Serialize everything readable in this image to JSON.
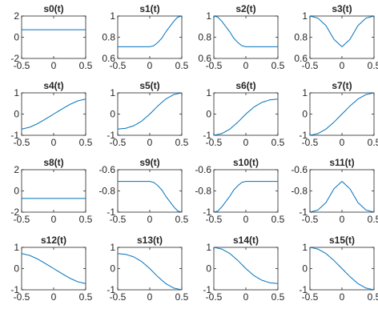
{
  "chart_data": [
    {
      "type": "line",
      "title": "s0(t)",
      "xlim": [
        -0.5,
        0.5
      ],
      "ylim": [
        -2,
        2
      ],
      "xticks": [
        -0.5,
        0,
        0.5
      ],
      "yticks": [
        -2,
        0,
        2
      ],
      "xtick_labels": [
        "-0.5",
        "0",
        "0.5"
      ],
      "ytick_labels": [
        "-2",
        "0",
        "2"
      ],
      "x": [
        -0.5,
        0.5
      ],
      "y": [
        0.71,
        0.71
      ]
    },
    {
      "type": "line",
      "title": "s1(t)",
      "xlim": [
        -0.5,
        0.5
      ],
      "ylim": [
        0.6,
        1
      ],
      "xticks": [
        -0.5,
        0,
        0.5
      ],
      "yticks": [
        0.6,
        0.8,
        1
      ],
      "xtick_labels": [
        "-0.5",
        "0",
        "0.5"
      ],
      "ytick_labels": [
        "0.6",
        "0.8",
        "1"
      ],
      "x": [
        -0.5,
        -0.25,
        0,
        0.0625,
        0.125,
        0.1875,
        0.25,
        0.3125,
        0.375,
        0.4375,
        0.5
      ],
      "y": [
        0.71,
        0.71,
        0.71,
        0.72,
        0.75,
        0.79,
        0.85,
        0.9,
        0.95,
        0.99,
        1.0
      ]
    },
    {
      "type": "line",
      "title": "s2(t)",
      "xlim": [
        -0.5,
        0.5
      ],
      "ylim": [
        0.6,
        1
      ],
      "xticks": [
        -0.5,
        0,
        0.5
      ],
      "yticks": [
        0.6,
        0.8,
        1
      ],
      "xtick_labels": [
        "-0.5",
        "0",
        "0.5"
      ],
      "ytick_labels": [
        "0.6",
        "0.8",
        "1"
      ],
      "x": [
        -0.5,
        -0.4375,
        -0.375,
        -0.3125,
        -0.25,
        -0.1875,
        -0.125,
        -0.0625,
        0,
        0.25,
        0.5
      ],
      "y": [
        1.0,
        0.99,
        0.95,
        0.9,
        0.85,
        0.79,
        0.75,
        0.72,
        0.71,
        0.71,
        0.71
      ]
    },
    {
      "type": "line",
      "title": "s3(t)",
      "xlim": [
        -0.5,
        0.5
      ],
      "ylim": [
        0.6,
        1
      ],
      "xticks": [
        -0.5,
        0,
        0.5
      ],
      "yticks": [
        0.6,
        0.8,
        1
      ],
      "xtick_labels": [
        "-0.5",
        "0",
        "0.5"
      ],
      "ytick_labels": [
        "0.6",
        "0.8",
        "1"
      ],
      "x": [
        -0.5,
        -0.375,
        -0.25,
        -0.125,
        0,
        0.125,
        0.25,
        0.375,
        0.5
      ],
      "y": [
        1.0,
        0.98,
        0.91,
        0.78,
        0.71,
        0.78,
        0.91,
        0.98,
        1.0
      ]
    },
    {
      "type": "line",
      "title": "s4(t)",
      "xlim": [
        -0.5,
        0.5
      ],
      "ylim": [
        -1,
        1
      ],
      "xticks": [
        -0.5,
        0,
        0.5
      ],
      "yticks": [
        -1,
        0,
        1
      ],
      "xtick_labels": [
        "-0.5",
        "0",
        "0.5"
      ],
      "ytick_labels": [
        "-1",
        "0",
        "1"
      ],
      "x": [
        -0.5,
        -0.375,
        -0.25,
        -0.125,
        0,
        0.125,
        0.25,
        0.375,
        0.5
      ],
      "y": [
        -0.71,
        -0.62,
        -0.45,
        -0.23,
        0.0,
        0.23,
        0.45,
        0.62,
        0.71
      ]
    },
    {
      "type": "line",
      "title": "s5(t)",
      "xlim": [
        -0.5,
        0.5
      ],
      "ylim": [
        -1,
        1
      ],
      "xticks": [
        -0.5,
        0,
        0.5
      ],
      "yticks": [
        -1,
        0,
        1
      ],
      "xtick_labels": [
        "-0.5",
        "0",
        "0.5"
      ],
      "ytick_labels": [
        "-1",
        "0",
        "1"
      ],
      "x": [
        -0.5,
        -0.375,
        -0.25,
        -0.125,
        0,
        0.125,
        0.25,
        0.375,
        0.5
      ],
      "y": [
        -0.71,
        -0.67,
        -0.55,
        -0.33,
        0.0,
        0.38,
        0.71,
        0.92,
        1.0
      ]
    },
    {
      "type": "line",
      "title": "s6(t)",
      "xlim": [
        -0.5,
        0.5
      ],
      "ylim": [
        -1,
        1
      ],
      "xticks": [
        -0.5,
        0,
        0.5
      ],
      "yticks": [
        -1,
        0,
        1
      ],
      "xtick_labels": [
        "-0.5",
        "0",
        "0.5"
      ],
      "ytick_labels": [
        "-1",
        "0",
        "1"
      ],
      "x": [
        -0.5,
        -0.375,
        -0.25,
        -0.125,
        0,
        0.125,
        0.25,
        0.375,
        0.5
      ],
      "y": [
        -1.0,
        -0.92,
        -0.71,
        -0.38,
        0.0,
        0.33,
        0.55,
        0.67,
        0.71
      ]
    },
    {
      "type": "line",
      "title": "s7(t)",
      "xlim": [
        -0.5,
        0.5
      ],
      "ylim": [
        -1,
        1
      ],
      "xticks": [
        -0.5,
        0,
        0.5
      ],
      "yticks": [
        -1,
        0,
        1
      ],
      "xtick_labels": [
        "-0.5",
        "0",
        "0.5"
      ],
      "ytick_labels": [
        "-1",
        "0",
        "1"
      ],
      "x": [
        -0.5,
        -0.375,
        -0.25,
        -0.125,
        0,
        0.125,
        0.25,
        0.375,
        0.5
      ],
      "y": [
        -1.0,
        -0.92,
        -0.71,
        -0.38,
        0.0,
        0.38,
        0.71,
        0.92,
        1.0
      ]
    },
    {
      "type": "line",
      "title": "s8(t)",
      "xlim": [
        -0.5,
        0.5
      ],
      "ylim": [
        -2,
        2
      ],
      "xticks": [
        -0.5,
        0,
        0.5
      ],
      "yticks": [
        -2,
        0,
        2
      ],
      "xtick_labels": [
        "-0.5",
        "0",
        "0.5"
      ],
      "ytick_labels": [
        "-2",
        "0",
        "2"
      ],
      "x": [
        -0.5,
        0.5
      ],
      "y": [
        -0.71,
        -0.71
      ]
    },
    {
      "type": "line",
      "title": "s9(t)",
      "xlim": [
        -0.5,
        0.5
      ],
      "ylim": [
        -1,
        -0.6
      ],
      "xticks": [
        -0.5,
        0,
        0.5
      ],
      "yticks": [
        -1,
        -0.8,
        -0.6
      ],
      "xtick_labels": [
        "-0.5",
        "0",
        "0.5"
      ],
      "ytick_labels": [
        "-1",
        "-0.8",
        "-0.6"
      ],
      "x": [
        -0.5,
        -0.25,
        0,
        0.0625,
        0.125,
        0.1875,
        0.25,
        0.3125,
        0.375,
        0.4375,
        0.5
      ],
      "y": [
        -0.71,
        -0.71,
        -0.71,
        -0.72,
        -0.75,
        -0.79,
        -0.85,
        -0.9,
        -0.95,
        -0.99,
        -1.0
      ]
    },
    {
      "type": "line",
      "title": "s10(t)",
      "xlim": [
        -0.5,
        0.5
      ],
      "ylim": [
        -1,
        -0.6
      ],
      "xticks": [
        -0.5,
        0,
        0.5
      ],
      "yticks": [
        -1,
        -0.8,
        -0.6
      ],
      "xtick_labels": [
        "-0.5",
        "0",
        "0.5"
      ],
      "ytick_labels": [
        "-1",
        "-0.8",
        "-0.6"
      ],
      "x": [
        -0.5,
        -0.4375,
        -0.375,
        -0.3125,
        -0.25,
        -0.1875,
        -0.125,
        -0.0625,
        0,
        0.25,
        0.5
      ],
      "y": [
        -1.0,
        -0.99,
        -0.95,
        -0.9,
        -0.85,
        -0.79,
        -0.75,
        -0.72,
        -0.71,
        -0.71,
        -0.71
      ]
    },
    {
      "type": "line",
      "title": "s11(t)",
      "xlim": [
        -0.5,
        0.5
      ],
      "ylim": [
        -1,
        -0.6
      ],
      "xticks": [
        -0.5,
        0,
        0.5
      ],
      "yticks": [
        -1,
        -0.8,
        -0.6
      ],
      "xtick_labels": [
        "-0.5",
        "0",
        "0.5"
      ],
      "ytick_labels": [
        "-1",
        "-0.8",
        "-0.6"
      ],
      "x": [
        -0.5,
        -0.375,
        -0.25,
        -0.125,
        0,
        0.125,
        0.25,
        0.375,
        0.5
      ],
      "y": [
        -1.0,
        -0.98,
        -0.91,
        -0.78,
        -0.71,
        -0.78,
        -0.91,
        -0.98,
        -1.0
      ]
    },
    {
      "type": "line",
      "title": "s12(t)",
      "xlim": [
        -0.5,
        0.5
      ],
      "ylim": [
        -1,
        1
      ],
      "xticks": [
        -0.5,
        0,
        0.5
      ],
      "yticks": [
        -1,
        0,
        1
      ],
      "xtick_labels": [
        "-0.5",
        "0",
        "0.5"
      ],
      "ytick_labels": [
        "-1",
        "0",
        "1"
      ],
      "x": [
        -0.5,
        -0.375,
        -0.25,
        -0.125,
        0,
        0.125,
        0.25,
        0.375,
        0.5
      ],
      "y": [
        0.71,
        0.62,
        0.45,
        0.23,
        0.0,
        -0.23,
        -0.45,
        -0.62,
        -0.71
      ]
    },
    {
      "type": "line",
      "title": "s13(t)",
      "xlim": [
        -0.5,
        0.5
      ],
      "ylim": [
        -1,
        1
      ],
      "xticks": [
        -0.5,
        0,
        0.5
      ],
      "yticks": [
        -1,
        0,
        1
      ],
      "xtick_labels": [
        "-0.5",
        "0",
        "0.5"
      ],
      "ytick_labels": [
        "-1",
        "0",
        "1"
      ],
      "x": [
        -0.5,
        -0.375,
        -0.25,
        -0.125,
        0,
        0.125,
        0.25,
        0.375,
        0.5
      ],
      "y": [
        0.71,
        0.67,
        0.55,
        0.33,
        0.0,
        -0.38,
        -0.71,
        -0.92,
        -1.0
      ]
    },
    {
      "type": "line",
      "title": "s14(t)",
      "xlim": [
        -0.5,
        0.5
      ],
      "ylim": [
        -1,
        1
      ],
      "xticks": [
        -0.5,
        0,
        0.5
      ],
      "yticks": [
        -1,
        0,
        1
      ],
      "xtick_labels": [
        "-0.5",
        "0",
        "0.5"
      ],
      "ytick_labels": [
        "-1",
        "0",
        "1"
      ],
      "x": [
        -0.5,
        -0.375,
        -0.25,
        -0.125,
        0,
        0.125,
        0.25,
        0.375,
        0.5
      ],
      "y": [
        1.0,
        0.92,
        0.71,
        0.38,
        0.0,
        -0.33,
        -0.55,
        -0.67,
        -0.71
      ]
    },
    {
      "type": "line",
      "title": "s15(t)",
      "xlim": [
        -0.5,
        0.5
      ],
      "ylim": [
        -1,
        1
      ],
      "xticks": [
        -0.5,
        0,
        0.5
      ],
      "yticks": [
        -1,
        0,
        1
      ],
      "xtick_labels": [
        "-0.5",
        "0",
        "0.5"
      ],
      "ytick_labels": [
        "-1",
        "0",
        "1"
      ],
      "x": [
        -0.5,
        -0.375,
        -0.25,
        -0.125,
        0,
        0.125,
        0.25,
        0.375,
        0.5
      ],
      "y": [
        1.0,
        0.92,
        0.71,
        0.38,
        0.0,
        -0.38,
        -0.71,
        -0.92,
        -1.0
      ]
    }
  ],
  "style": {
    "line_color": "#0072BD",
    "axis_color": "#262626"
  }
}
